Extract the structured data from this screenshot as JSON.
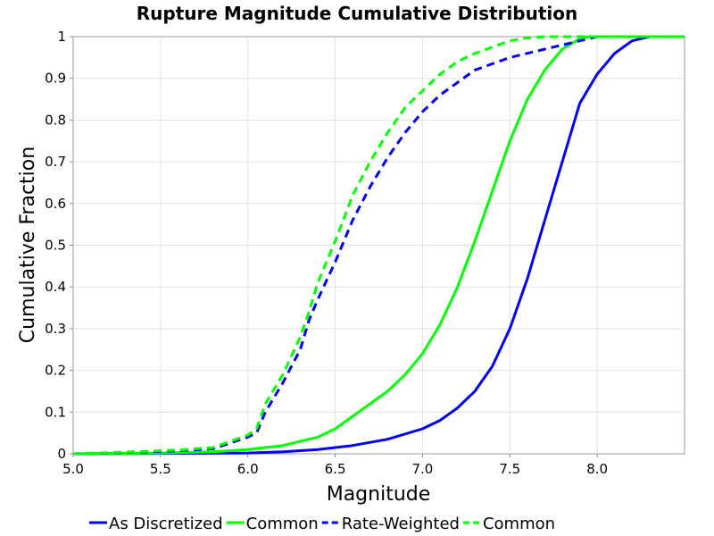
{
  "chart_data": {
    "type": "line",
    "title": "Rupture Magnitude Cumulative Distribution",
    "xlabel": "Magnitude",
    "ylabel": "Cumulative Fraction",
    "xlim": [
      5.0,
      8.5
    ],
    "ylim": [
      0,
      1
    ],
    "x_ticks": [
      "5.0",
      "5.5",
      "6.0",
      "6.5",
      "7.0",
      "7.5",
      "8.0"
    ],
    "y_ticks": [
      "0",
      "0.1",
      "0.2",
      "0.3",
      "0.4",
      "0.5",
      "0.6",
      "0.7",
      "0.8",
      "0.9",
      "1"
    ],
    "grid": true,
    "legend_position": "bottom",
    "series": [
      {
        "name": "As Discretized",
        "color": "#0000ff",
        "dashed": false,
        "x": [
          5.0,
          5.5,
          6.0,
          6.2,
          6.4,
          6.6,
          6.8,
          7.0,
          7.1,
          7.2,
          7.3,
          7.4,
          7.5,
          7.6,
          7.7,
          7.8,
          7.9,
          8.0,
          8.1,
          8.2,
          8.3,
          8.35,
          8.5
        ],
        "y": [
          0,
          0.001,
          0.002,
          0.005,
          0.01,
          0.02,
          0.035,
          0.06,
          0.08,
          0.11,
          0.15,
          0.21,
          0.3,
          0.42,
          0.56,
          0.7,
          0.84,
          0.91,
          0.96,
          0.99,
          1.0,
          1.0,
          1.0
        ]
      },
      {
        "name": "Common",
        "color": "#00ff00",
        "dashed": false,
        "x": [
          5.0,
          5.5,
          5.8,
          6.0,
          6.2,
          6.4,
          6.5,
          6.6,
          6.7,
          6.8,
          6.9,
          7.0,
          7.1,
          7.2,
          7.3,
          7.4,
          7.5,
          7.6,
          7.7,
          7.8,
          7.9,
          7.95,
          8.0,
          8.5
        ],
        "y": [
          0,
          0.002,
          0.005,
          0.01,
          0.02,
          0.04,
          0.06,
          0.09,
          0.12,
          0.15,
          0.19,
          0.24,
          0.31,
          0.4,
          0.51,
          0.63,
          0.75,
          0.85,
          0.92,
          0.97,
          0.995,
          1.0,
          1.0,
          1.0
        ]
      },
      {
        "name": "Rate-Weighted",
        "color": "#0000ff",
        "dashed": true,
        "x": [
          5.0,
          5.3,
          5.6,
          5.8,
          6.0,
          6.05,
          6.1,
          6.2,
          6.3,
          6.35,
          6.4,
          6.5,
          6.6,
          6.7,
          6.8,
          6.9,
          7.0,
          7.1,
          7.2,
          7.3,
          7.5,
          7.7,
          7.9,
          8.0,
          8.5
        ],
        "y": [
          0,
          0.003,
          0.007,
          0.012,
          0.04,
          0.05,
          0.1,
          0.17,
          0.25,
          0.32,
          0.37,
          0.46,
          0.56,
          0.64,
          0.71,
          0.77,
          0.82,
          0.86,
          0.89,
          0.92,
          0.95,
          0.97,
          0.99,
          1.0,
          1.0
        ]
      },
      {
        "name": "Common",
        "color": "#00ff00",
        "dashed": true,
        "x": [
          5.0,
          5.3,
          5.6,
          5.8,
          6.0,
          6.05,
          6.1,
          6.2,
          6.3,
          6.35,
          6.4,
          6.5,
          6.6,
          6.7,
          6.8,
          6.9,
          7.0,
          7.1,
          7.2,
          7.3,
          7.5,
          7.6,
          7.7,
          8.5
        ],
        "y": [
          0,
          0.004,
          0.009,
          0.015,
          0.045,
          0.06,
          0.12,
          0.19,
          0.28,
          0.34,
          0.41,
          0.51,
          0.62,
          0.7,
          0.77,
          0.83,
          0.87,
          0.91,
          0.94,
          0.96,
          0.99,
          0.997,
          1.0,
          1.0
        ]
      }
    ]
  }
}
